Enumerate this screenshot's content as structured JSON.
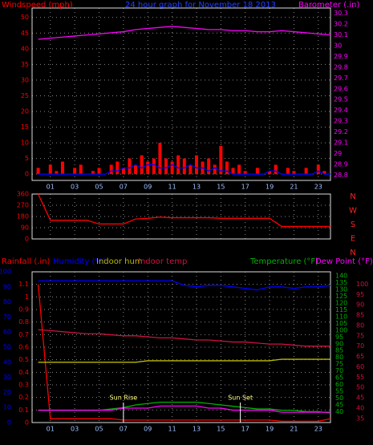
{
  "chart_data": [
    {
      "type": "combo",
      "title": "24 hour graph for November 18 2013",
      "xlim": [
        -0.5,
        24
      ],
      "xticks": [
        {
          "value": 1,
          "label": "01"
        },
        {
          "value": 3,
          "label": "03"
        },
        {
          "value": 5,
          "label": "05"
        },
        {
          "value": 7,
          "label": "07"
        },
        {
          "value": 9,
          "label": "09"
        },
        {
          "value": 11,
          "label": "11"
        },
        {
          "value": 13,
          "label": "13"
        },
        {
          "value": 15,
          "label": "15"
        },
        {
          "value": 17,
          "label": "17"
        },
        {
          "value": 19,
          "label": "19"
        },
        {
          "value": 21,
          "label": "21"
        },
        {
          "value": 23,
          "label": "23"
        }
      ],
      "ylim": [
        -2,
        53
      ],
      "yticks": [
        0,
        5,
        10,
        15,
        20,
        25,
        30,
        35,
        40,
        45,
        50
      ],
      "y2lim": [
        28.75,
        30.35
      ],
      "y2ticks": [
        28.8,
        28.9,
        29,
        29.1,
        29.2,
        29.3,
        29.4,
        29.5,
        29.6,
        29.7,
        29.8,
        29.9,
        30,
        30.1,
        30.2,
        30.3
      ],
      "grid": true,
      "series": [
        {
          "name": "Windspeed (mph)",
          "kind": "bar",
          "color": "#ff0000",
          "x": [
            0,
            0.5,
            1,
            1.5,
            2,
            2.5,
            3,
            3.5,
            4,
            4.5,
            5,
            5.5,
            6,
            6.5,
            7,
            7.5,
            8,
            8.5,
            9,
            9.5,
            10,
            10.5,
            11,
            11.5,
            12,
            12.5,
            13,
            13.5,
            14,
            14.5,
            15,
            15.5,
            16,
            16.5,
            17,
            17.5,
            18,
            18.5,
            19,
            19.5,
            20,
            20.5,
            21,
            21.5,
            22,
            22.5,
            23,
            23.5,
            24
          ],
          "values": [
            2,
            0,
            3,
            1,
            4,
            0,
            2,
            3,
            0,
            1,
            2,
            0,
            3,
            4,
            2,
            5,
            3,
            6,
            4,
            5,
            10,
            5,
            4,
            6,
            5,
            3,
            6,
            4,
            5,
            3,
            9,
            4,
            2,
            3,
            1,
            0,
            2,
            0,
            1,
            3,
            0,
            2,
            1,
            0,
            2,
            0,
            3,
            1,
            0
          ]
        },
        {
          "kind": "line",
          "color": "#0000ff",
          "x": [
            0,
            0.5,
            1,
            1.5,
            2,
            2.5,
            3,
            3.5,
            4,
            4.5,
            5,
            5.5,
            6,
            6.5,
            7,
            7.5,
            8,
            8.5,
            9,
            9.5,
            10,
            10.5,
            11,
            11.5,
            12,
            12.5,
            13,
            13.5,
            14,
            14.5,
            15,
            15.5,
            16,
            16.5,
            17,
            17.5,
            18,
            18.5,
            19,
            19.5,
            20,
            20.5,
            21,
            21.5,
            22,
            22.5,
            23,
            23.5,
            24
          ],
          "values": [
            0,
            0,
            0,
            0,
            0,
            0,
            0,
            0,
            0,
            0,
            0,
            0,
            1,
            1,
            2,
            2,
            3,
            2,
            3,
            3,
            2,
            2,
            3,
            2,
            2,
            3,
            2,
            2,
            1,
            2,
            1,
            1,
            0,
            0,
            0,
            0,
            0,
            0,
            1,
            1,
            0,
            0,
            0,
            0,
            0,
            0,
            1,
            0,
            0
          ]
        },
        {
          "name": "Barometer (.in)",
          "kind": "line",
          "color": "#ff00ff",
          "axis": "y2",
          "x": [
            0,
            1,
            2,
            3,
            4,
            5,
            6,
            7,
            8,
            9,
            10,
            11,
            12,
            13,
            14,
            15,
            16,
            17,
            18,
            19,
            20,
            21,
            22,
            23,
            24
          ],
          "values": [
            30.06,
            30.07,
            30.08,
            30.09,
            30.1,
            30.11,
            30.12,
            30.13,
            30.15,
            30.16,
            30.17,
            30.18,
            30.17,
            30.16,
            30.15,
            30.15,
            30.14,
            30.14,
            30.13,
            30.13,
            30.14,
            30.13,
            30.12,
            30.11,
            30.1
          ]
        }
      ]
    },
    {
      "type": "line",
      "xlim": [
        -0.5,
        24
      ],
      "xticks": [
        1,
        3,
        5,
        7,
        9,
        11,
        13,
        15,
        17,
        19,
        21,
        23
      ],
      "ylim": [
        0,
        360
      ],
      "yticks": [
        0,
        90,
        180,
        270,
        360
      ],
      "grid": true,
      "compass": [
        "N",
        "W",
        "S",
        "E",
        "N"
      ],
      "series": [
        {
          "kind": "line",
          "color": "#ff0000",
          "x": [
            0,
            1,
            2,
            3,
            4,
            5,
            6,
            7,
            8,
            9,
            10,
            11,
            12,
            13,
            14,
            15,
            16,
            17,
            18,
            19,
            20,
            21,
            22,
            23,
            24
          ],
          "values": [
            360,
            150,
            150,
            150,
            150,
            120,
            120,
            120,
            160,
            165,
            175,
            170,
            170,
            170,
            170,
            165,
            165,
            165,
            165,
            165,
            100,
            100,
            100,
            100,
            100
          ]
        }
      ]
    },
    {
      "type": "line",
      "xlim": [
        -0.5,
        24
      ],
      "xticks": [
        {
          "value": 1,
          "label": "01"
        },
        {
          "value": 3,
          "label": "03"
        },
        {
          "value": 5,
          "label": "05"
        },
        {
          "value": 7,
          "label": "07"
        },
        {
          "value": 9,
          "label": "09"
        },
        {
          "value": 11,
          "label": "11"
        },
        {
          "value": 13,
          "label": "13"
        },
        {
          "value": 15,
          "label": "15"
        },
        {
          "value": 17,
          "label": "17"
        },
        {
          "value": 19,
          "label": "19"
        },
        {
          "value": 21,
          "label": "21"
        },
        {
          "value": 23,
          "label": "23"
        }
      ],
      "ylim": [
        0,
        1.2
      ],
      "yticks": [
        0,
        0.1,
        0.2,
        0.3,
        0.4,
        0.5,
        0.6,
        0.7,
        0.8,
        0.9,
        1,
        1.1
      ],
      "y2lim": [
        0,
        100
      ],
      "y2ticks": [
        0,
        10,
        20,
        30,
        40,
        50,
        60,
        70,
        80,
        90,
        100
      ],
      "y3lim": [
        32,
        143
      ],
      "y3ticks": [
        40,
        45,
        50,
        55,
        60,
        65,
        70,
        75,
        80,
        85,
        90,
        95,
        100,
        105,
        110,
        115,
        120,
        125,
        130,
        135,
        140
      ],
      "y4lim": [
        33,
        106
      ],
      "y4ticks": [
        35,
        40,
        45,
        50,
        55,
        60,
        65,
        70,
        75,
        80,
        85,
        90,
        95,
        100
      ],
      "grid": true,
      "annotations": [
        {
          "text": "Sun Rise",
          "x": 7
        },
        {
          "text": "Sun Set",
          "x": 16.6
        }
      ],
      "series": [
        {
          "name": "Rainfall (.in)",
          "kind": "line",
          "color": "#ff0000",
          "x": [
            0,
            1,
            2,
            3,
            4,
            5,
            6,
            7,
            8,
            9,
            10,
            11,
            12,
            13,
            14,
            15,
            16,
            17,
            18,
            19,
            20,
            21,
            22,
            23,
            24
          ],
          "values": [
            1.1,
            0.03,
            0.03,
            0.03,
            0.03,
            0.03,
            0.03,
            0.02,
            0.02,
            0.02,
            0.02,
            0.02,
            0.02,
            0.02,
            0.02,
            0.02,
            0.02,
            0.02,
            0.02,
            0.02,
            0.01,
            0.01,
            0.01,
            0.01,
            0.03
          ]
        },
        {
          "name": "Humidity (%)",
          "kind": "line",
          "color": "#0000ff",
          "axis": "y2",
          "x": [
            0,
            1,
            2,
            3,
            4,
            5,
            6,
            7,
            8,
            9,
            10,
            11,
            12,
            13,
            14,
            15,
            16,
            17,
            18,
            19,
            20,
            21,
            22,
            23,
            24
          ],
          "values": [
            94,
            94,
            94,
            94,
            94,
            94,
            94,
            94,
            94,
            94,
            94,
            94,
            91,
            90,
            91,
            91,
            90,
            89,
            88,
            90,
            90,
            89,
            90,
            90,
            91
          ]
        },
        {
          "name": "Indoor hum",
          "kind": "line",
          "color": "#b8b800",
          "axis": "y2",
          "x": [
            0,
            1,
            2,
            3,
            4,
            5,
            6,
            7,
            8,
            9,
            10,
            11,
            12,
            13,
            14,
            15,
            16,
            17,
            18,
            19,
            20,
            21,
            22,
            23,
            24
          ],
          "values": [
            40,
            40,
            40,
            40,
            40,
            40,
            40,
            40,
            40,
            41,
            41,
            41,
            41,
            41,
            41,
            41,
            41,
            41,
            41,
            41,
            42,
            42,
            42,
            42,
            42
          ]
        },
        {
          "name": "Indoor temp",
          "kind": "line",
          "color": "#d01040",
          "axis": "y4",
          "x": [
            0,
            1,
            2,
            3,
            4,
            5,
            6,
            7,
            8,
            9,
            10,
            11,
            12,
            13,
            14,
            15,
            16,
            17,
            18,
            19,
            20,
            21,
            22,
            23,
            24
          ],
          "values": [
            78,
            77.5,
            77,
            76.5,
            76,
            76,
            75.5,
            75,
            75,
            74.5,
            74,
            74,
            73.5,
            73,
            73,
            72.5,
            72,
            72,
            71.5,
            71,
            71,
            70.5,
            70,
            70,
            70
          ]
        },
        {
          "name": "Temperature (°F)",
          "kind": "line",
          "color": "#00b000",
          "axis": "y3",
          "x": [
            0,
            1,
            2,
            3,
            4,
            5,
            6,
            7,
            8,
            9,
            10,
            11,
            12,
            13,
            14,
            15,
            16,
            17,
            18,
            19,
            20,
            21,
            22,
            23,
            24
          ],
          "values": [
            41,
            41,
            41,
            41,
            41,
            41,
            42,
            43,
            45,
            46,
            47,
            47,
            47,
            47,
            46,
            45,
            44,
            43,
            42,
            42,
            41,
            41,
            40,
            40,
            39
          ]
        },
        {
          "name": "Dew Point (°F)",
          "kind": "line",
          "color": "#ff00ff",
          "axis": "y4",
          "x": [
            0,
            1,
            2,
            3,
            4,
            5,
            6,
            7,
            8,
            9,
            10,
            11,
            12,
            13,
            14,
            15,
            16,
            17,
            18,
            19,
            20,
            21,
            22,
            23,
            24
          ],
          "values": [
            39,
            39,
            39,
            39,
            39,
            39,
            39,
            40,
            40,
            40,
            41,
            41,
            41,
            41,
            40,
            40,
            39,
            39,
            39,
            39,
            38,
            38,
            38,
            38,
            38
          ]
        }
      ]
    }
  ]
}
